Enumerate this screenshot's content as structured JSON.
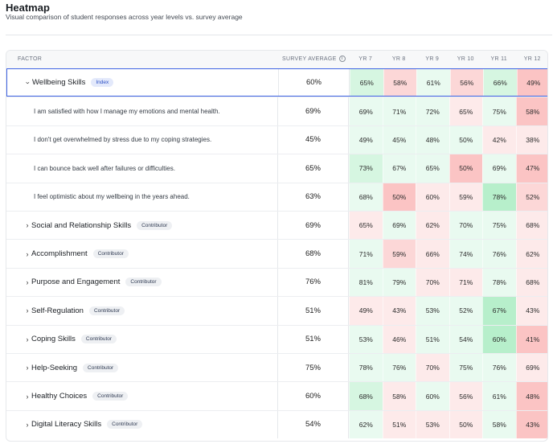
{
  "header": {
    "title": "Heatmap",
    "subtitle": "Visual comparison of student responses across year levels vs. survey average"
  },
  "table": {
    "columns": {
      "factor": "FACTOR",
      "survey_average": "SURVEY AVERAGE",
      "years": [
        "YR 7",
        "YR 8",
        "YR 9",
        "YR 10",
        "YR 11",
        "YR 12"
      ]
    },
    "colors": {
      "green_strong": "#b7efcb",
      "green": "#d6f6e1",
      "green_light": "#e9faf0",
      "red_strong": "#fbc4c4",
      "red": "#fcd7d7",
      "red_light": "#fdeaea",
      "selected_border": "#3f64e4"
    },
    "rows": [
      {
        "kind": "factor",
        "expanded": true,
        "selected": true,
        "name": "Wellbeing Skills",
        "badge": "Index",
        "average": "60%",
        "values": [
          "65%",
          "58%",
          "61%",
          "56%",
          "66%",
          "49%"
        ],
        "shades": [
          "green",
          "red",
          "green_light",
          "red",
          "green",
          "red_strong"
        ]
      },
      {
        "kind": "item",
        "name": "I am satisfied with how I manage my emotions and mental health.",
        "average": "69%",
        "values": [
          "69%",
          "71%",
          "72%",
          "65%",
          "75%",
          "58%"
        ],
        "shades": [
          "green_light",
          "green_light",
          "green_light",
          "red_light",
          "green_light",
          "red_strong"
        ]
      },
      {
        "kind": "item",
        "name": "I don't get overwhelmed by stress due to my coping strategies.",
        "average": "45%",
        "values": [
          "49%",
          "45%",
          "48%",
          "50%",
          "42%",
          "38%"
        ],
        "shades": [
          "green_light",
          "green_light",
          "green_light",
          "green_light",
          "red_light",
          "red_light"
        ]
      },
      {
        "kind": "item",
        "name": "I can bounce back well after failures or difficulties.",
        "average": "65%",
        "values": [
          "73%",
          "67%",
          "65%",
          "50%",
          "69%",
          "47%"
        ],
        "shades": [
          "green",
          "green_light",
          "green_light",
          "red_strong",
          "green_light",
          "red_strong"
        ]
      },
      {
        "kind": "item",
        "name": "I feel optimistic about my wellbeing in the years ahead.",
        "average": "63%",
        "values": [
          "68%",
          "50%",
          "60%",
          "59%",
          "78%",
          "52%"
        ],
        "shades": [
          "green_light",
          "red_strong",
          "red_light",
          "red_light",
          "green_strong",
          "red"
        ]
      },
      {
        "kind": "factor",
        "expanded": false,
        "name": "Social and Relationship Skills",
        "badge": "Contributor",
        "average": "69%",
        "values": [
          "65%",
          "69%",
          "62%",
          "70%",
          "75%",
          "68%"
        ],
        "shades": [
          "red_light",
          "green_light",
          "red_light",
          "green_light",
          "green_light",
          "red_light"
        ]
      },
      {
        "kind": "factor",
        "expanded": false,
        "name": "Accomplishment",
        "badge": "Contributor",
        "average": "68%",
        "values": [
          "71%",
          "59%",
          "66%",
          "74%",
          "76%",
          "62%"
        ],
        "shades": [
          "green_light",
          "red",
          "red_light",
          "green_light",
          "green_light",
          "red_light"
        ]
      },
      {
        "kind": "factor",
        "expanded": false,
        "name": "Purpose and Engagement",
        "badge": "Contributor",
        "average": "76%",
        "values": [
          "81%",
          "79%",
          "70%",
          "71%",
          "78%",
          "68%"
        ],
        "shades": [
          "green_light",
          "green_light",
          "red_light",
          "red_light",
          "green_light",
          "red_light"
        ]
      },
      {
        "kind": "factor",
        "expanded": false,
        "name": "Self-Regulation",
        "badge": "Contributor",
        "average": "51%",
        "values": [
          "49%",
          "43%",
          "53%",
          "52%",
          "67%",
          "43%"
        ],
        "shades": [
          "red_light",
          "red_light",
          "green_light",
          "green_light",
          "green_strong",
          "red_light"
        ]
      },
      {
        "kind": "factor",
        "expanded": false,
        "name": "Coping Skills",
        "badge": "Contributor",
        "average": "51%",
        "values": [
          "53%",
          "46%",
          "51%",
          "54%",
          "60%",
          "41%"
        ],
        "shades": [
          "green_light",
          "red_light",
          "green_light",
          "green_light",
          "green_strong",
          "red_strong"
        ]
      },
      {
        "kind": "factor",
        "expanded": false,
        "name": "Help-Seeking",
        "badge": "Contributor",
        "average": "75%",
        "values": [
          "78%",
          "76%",
          "70%",
          "75%",
          "76%",
          "69%"
        ],
        "shades": [
          "green_light",
          "green_light",
          "red_light",
          "green_light",
          "green_light",
          "red_light"
        ]
      },
      {
        "kind": "factor",
        "expanded": false,
        "name": "Healthy Choices",
        "badge": "Contributor",
        "average": "60%",
        "values": [
          "68%",
          "58%",
          "60%",
          "56%",
          "61%",
          "48%"
        ],
        "shades": [
          "green",
          "red_light",
          "green_light",
          "red_light",
          "green_light",
          "red_strong"
        ]
      },
      {
        "kind": "factor",
        "expanded": false,
        "name": "Digital Literacy Skills",
        "badge": "Contributor",
        "average": "54%",
        "values": [
          "62%",
          "51%",
          "53%",
          "50%",
          "58%",
          "43%"
        ],
        "shades": [
          "green_light",
          "red_light",
          "red_light",
          "red_light",
          "green_light",
          "red_strong"
        ]
      }
    ]
  }
}
